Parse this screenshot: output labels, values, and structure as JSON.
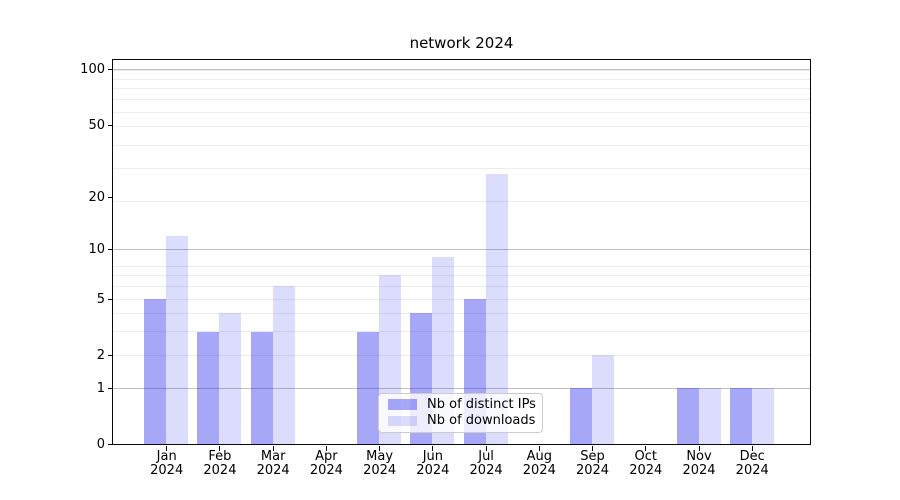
{
  "chart_data": {
    "type": "bar",
    "title": "network 2024",
    "categories": [
      "Jan 2024",
      "Feb 2024",
      "Mar 2024",
      "Apr 2024",
      "May 2024",
      "Jun 2024",
      "Jul 2024",
      "Aug 2024",
      "Sep 2024",
      "Oct 2024",
      "Nov 2024",
      "Dec 2024"
    ],
    "series": [
      {
        "name": "Nb of distinct IPs",
        "color": "rgba(60,60,240,0.45)",
        "values": [
          5,
          3,
          3,
          0,
          3,
          4,
          5,
          0,
          1,
          0,
          1,
          1
        ]
      },
      {
        "name": "Nb of downloads",
        "color": "rgba(60,60,240,0.18)",
        "values": [
          12,
          4,
          6,
          0,
          7,
          9,
          27,
          0,
          2,
          0,
          1,
          1
        ]
      }
    ],
    "xlabel": "",
    "ylabel": "",
    "yscale": "log1p",
    "y_ticks": [
      0,
      1,
      2,
      5,
      10,
      20,
      50,
      100
    ],
    "y_major_gridlines": [
      1,
      10,
      100
    ],
    "ylim": [
      0,
      113
    ],
    "grid": true,
    "legend_position": "lower center",
    "colors": {
      "background": "#ffffff",
      "axis": "#0a0a0a",
      "text": "#000000",
      "grid_minor": "#ececec",
      "grid_major": "#bfbfbf"
    }
  }
}
